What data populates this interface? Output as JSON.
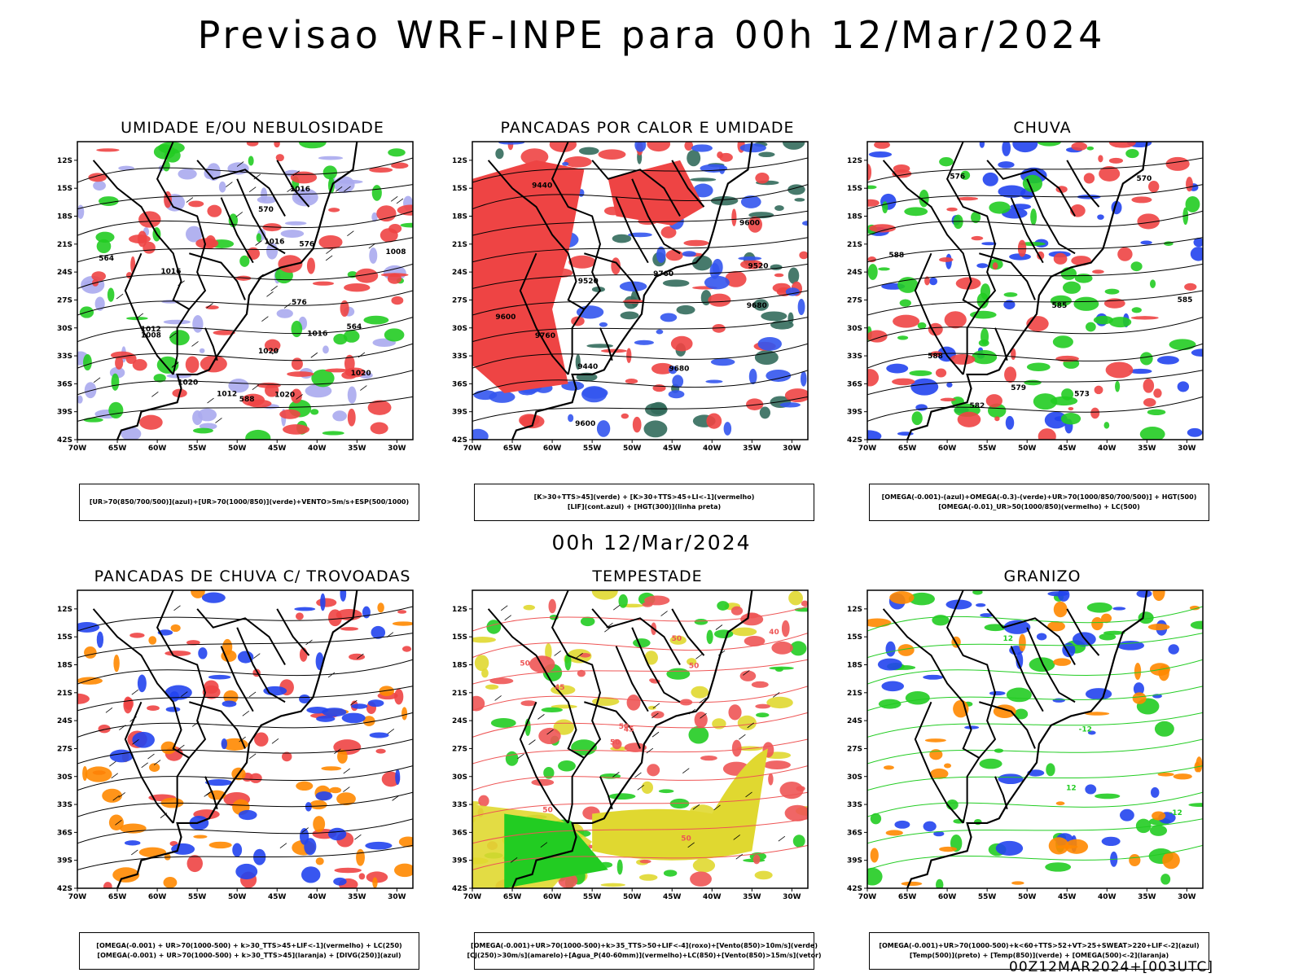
{
  "title": "Previsao WRF-INPE  para 00h 12/Mar/2024",
  "mid_title": "00h 12/Mar/2024",
  "footer": "00Z12MAR2024+[003UTC]",
  "chart_data": [
    {
      "type": "map",
      "title": "UMIDADE E/OU NEBULOSIDADE",
      "legend": [
        "[UR>70(850/700/500)](azul)+[UR>70(1000/850)](verde)+VENTO>5m/s+ESP(500/1000)",
        ""
      ],
      "lat_ticks": [
        "12S",
        "15S",
        "18S",
        "21S",
        "24S",
        "27S",
        "30S",
        "33S",
        "36S",
        "39S",
        "42S"
      ],
      "lon_ticks": [
        "70W",
        "65W",
        "60W",
        "55W",
        "50W",
        "45W",
        "40W",
        "35W",
        "30W"
      ],
      "contour_labels": [
        "1012",
        "1012",
        "1016",
        "1016",
        "1016",
        "1016",
        "1020",
        "1020",
        "1020",
        "1020",
        "1008",
        "1008",
        "576",
        "576",
        "564",
        "564",
        "570",
        "588"
      ],
      "colors": {
        "azul": "#aaaaee",
        "verde": "#22cc22",
        "vermelho": "#ee4444",
        "linha": "#000000"
      }
    },
    {
      "type": "map",
      "title": "PANCADAS POR CALOR E UMIDADE",
      "legend": [
        "[K>30+TTS>45](verde) + [K>30+TTS>45+LI<-1](vermelho)",
        "[LIF](cont.azul) + [HGT(300)](linha preta)"
      ],
      "lat_ticks": [
        "12S",
        "15S",
        "18S",
        "21S",
        "24S",
        "27S",
        "30S",
        "33S",
        "36S",
        "39S",
        "42S"
      ],
      "lon_ticks": [
        "70W",
        "65W",
        "60W",
        "55W",
        "50W",
        "45W",
        "40W",
        "35W",
        "30W"
      ],
      "contour_labels": [
        "9760",
        "9680",
        "9760",
        "9680",
        "9600",
        "9600",
        "9600",
        "9520",
        "9520",
        "9440",
        "9440"
      ],
      "colors": {
        "verde": "#336b5c",
        "vermelho": "#ee4444",
        "azul": "#3355ee",
        "linha": "#000000"
      }
    },
    {
      "type": "map",
      "title": "CHUVA",
      "legend": [
        "[OMEGA(-0.001)-(azul)+OMEGA(-0.3)-(verde)+UR>70(1000/850/700/500)] + HGT(500)",
        "[OMEGA(-0.01)_UR>50(1000/850)(vermelho) + LC(500)"
      ],
      "lat_ticks": [
        "12S",
        "15S",
        "18S",
        "21S",
        "24S",
        "27S",
        "30S",
        "33S",
        "36S",
        "39S",
        "42S"
      ],
      "lon_ticks": [
        "70W",
        "65W",
        "60W",
        "55W",
        "50W",
        "45W",
        "40W",
        "35W",
        "30W"
      ],
      "contour_labels": [
        "588",
        "588",
        "585",
        "585",
        "582",
        "579",
        "576",
        "573",
        "570"
      ],
      "colors": {
        "azul": "#2244ee",
        "verde": "#22cc22",
        "vermelho": "#ee4444",
        "linha": "#000000"
      }
    },
    {
      "type": "map",
      "title": "PANCADAS DE CHUVA C/ TROVOADAS",
      "legend": [
        "[OMEGA(-0.001) + UR>70(1000-500) + k>30_TTS>45+LIF<-1](vermelho) + LC(250)",
        "[OMEGA(-0.001) + UR>70(1000-500) + k>30_TTS>45](laranja) + [DIVG(250)](azul)"
      ],
      "lat_ticks": [
        "12S",
        "15S",
        "18S",
        "21S",
        "24S",
        "27S",
        "30S",
        "33S",
        "36S",
        "39S",
        "42S"
      ],
      "lon_ticks": [
        "70W",
        "65W",
        "60W",
        "55W",
        "50W",
        "45W",
        "40W",
        "35W",
        "30W"
      ],
      "contour_labels": [],
      "colors": {
        "vermelho": "#ee4444",
        "laranja": "#ff8800",
        "azul": "#2244ee",
        "linha": "#000000"
      }
    },
    {
      "type": "map",
      "title": "TEMPESTADE",
      "legend": [
        "[OMEGA(-0.001)+UR>70(1000-500)+k>35_TTS>50+LIF<-4](roxo)+[Vento(850)>10m/s](verde)",
        "[CJ(250)>30m/s](amarelo)+[Agua_P(40-60mm)](vermelho)+LC(850)+[Vento(850)>15m/s](vetor)"
      ],
      "lat_ticks": [
        "12S",
        "15S",
        "18S",
        "21S",
        "24S",
        "27S",
        "30S",
        "33S",
        "36S",
        "39S",
        "42S"
      ],
      "lon_ticks": [
        "70W",
        "65W",
        "60W",
        "55W",
        "50W",
        "45W",
        "40W",
        "35W",
        "30W"
      ],
      "contour_labels": [
        "50",
        "50",
        "50",
        "50",
        "50",
        "50",
        "50",
        "45",
        "45",
        "40"
      ],
      "colors": {
        "amarelo": "#e0d830",
        "verde": "#22cc22",
        "vermelho": "#ee5555",
        "linha": "#000000"
      }
    },
    {
      "type": "map",
      "title": "GRANIZO",
      "legend": [
        "[OMEGA(-0.001)+UR>70(1000-500)+k<60+TTS>52+VT>25+SWEAT>220+LIF<-2](azul)",
        "[Temp(500)](preto) + [Temp(850)](verde) + [OMEGA(500)<-2](laranja)"
      ],
      "lat_ticks": [
        "12S",
        "15S",
        "18S",
        "21S",
        "24S",
        "27S",
        "30S",
        "33S",
        "36S",
        "39S",
        "42S"
      ],
      "lon_ticks": [
        "70W",
        "65W",
        "60W",
        "55W",
        "50W",
        "45W",
        "40W",
        "35W",
        "30W"
      ],
      "contour_labels": [
        "-12",
        "-12",
        "12",
        "12"
      ],
      "colors": {
        "verde": "#22cc22",
        "azul": "#2244ee",
        "laranja": "#ff8800",
        "linha": "#000000"
      }
    }
  ]
}
